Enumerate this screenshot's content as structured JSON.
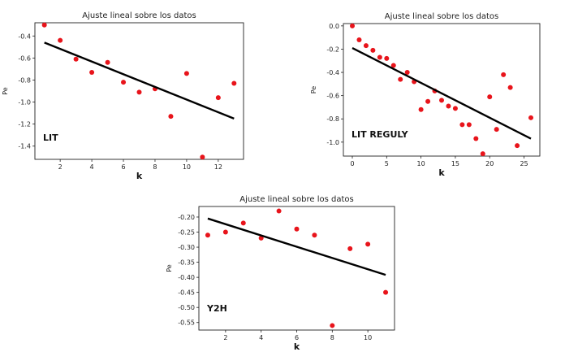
{
  "chart_data": [
    {
      "type": "scatter",
      "title": "Ajuste lineal sobre los datos",
      "xlabel": "k",
      "ylabel": "Pe",
      "panel_label": "LIT",
      "xlim": [
        0.4,
        13.6
      ],
      "ylim": [
        -1.52,
        -0.28
      ],
      "xticks": [
        2,
        4,
        6,
        8,
        10,
        12
      ],
      "xtick_labels": [
        "2",
        "4",
        "6",
        "8",
        "10",
        "12"
      ],
      "yticks": [
        -1.4,
        -1.2,
        -1.0,
        -0.8,
        -0.6,
        -0.4
      ],
      "ytick_labels": [
        "-1.4",
        "-1.2",
        "-1.0",
        "-0.8",
        "-0.6",
        "-0.4"
      ],
      "series": [
        {
          "type": "scatter",
          "color": "#e8141b",
          "x": [
            1,
            2,
            3,
            4,
            5,
            6,
            7,
            8,
            9,
            10,
            11,
            12,
            13
          ],
          "y": [
            -0.3,
            -0.44,
            -0.61,
            -0.73,
            -0.64,
            -0.82,
            -0.91,
            -0.88,
            -1.13,
            -0.74,
            -1.5,
            -0.96,
            -0.83
          ]
        },
        {
          "type": "line",
          "color": "#000000",
          "x": [
            1,
            13
          ],
          "y": [
            -0.46,
            -1.15
          ]
        }
      ]
    },
    {
      "type": "scatter",
      "title": "Ajuste lineal sobre los datos",
      "xlabel": "k",
      "ylabel": "Pe",
      "panel_label": "LIT REGULY",
      "xlim": [
        -1.3,
        27.3
      ],
      "ylim": [
        -1.12,
        0.02
      ],
      "xticks": [
        0,
        5,
        10,
        15,
        20,
        25
      ],
      "xtick_labels": [
        "0",
        "5",
        "10",
        "15",
        "20",
        "25"
      ],
      "yticks": [
        -1.0,
        -0.8,
        -0.6,
        -0.4,
        -0.2,
        0.0
      ],
      "ytick_labels": [
        "-1.0",
        "-0.8",
        "-0.6",
        "-0.4",
        "-0.2",
        "0.0"
      ],
      "series": [
        {
          "type": "scatter",
          "color": "#e8141b",
          "x": [
            0,
            1,
            2,
            3,
            4,
            5,
            6,
            7,
            8,
            9,
            10,
            11,
            12,
            13,
            14,
            15,
            16,
            17,
            18,
            19,
            20,
            21,
            22,
            23,
            24,
            26
          ],
          "y": [
            0.0,
            -0.12,
            -0.17,
            -0.21,
            -0.27,
            -0.28,
            -0.34,
            -0.46,
            -0.4,
            -0.48,
            -0.72,
            -0.65,
            -0.56,
            -0.64,
            -0.69,
            -0.71,
            -0.85,
            -0.85,
            -0.97,
            -1.1,
            -0.61,
            -0.89,
            -0.42,
            -0.53,
            -1.03,
            -0.79
          ]
        },
        {
          "type": "line",
          "color": "#000000",
          "x": [
            0,
            26
          ],
          "y": [
            -0.19,
            -0.97
          ]
        }
      ]
    },
    {
      "type": "scatter",
      "title": "Ajuste lineal sobre los datos",
      "xlabel": "k",
      "ylabel": "Pe",
      "panel_label": "Y2H",
      "xlim": [
        0.5,
        11.5
      ],
      "ylim": [
        -0.575,
        -0.165
      ],
      "xticks": [
        2,
        4,
        6,
        8,
        10
      ],
      "xtick_labels": [
        "2",
        "4",
        "6",
        "8",
        "10"
      ],
      "yticks": [
        -0.55,
        -0.5,
        -0.45,
        -0.4,
        -0.35,
        -0.3,
        -0.25,
        -0.2
      ],
      "ytick_labels": [
        "-0.55",
        "-0.50",
        "-0.45",
        "-0.40",
        "-0.35",
        "-0.30",
        "-0.25",
        "-0.20"
      ],
      "series": [
        {
          "type": "scatter",
          "color": "#e8141b",
          "x": [
            1,
            2,
            3,
            4,
            5,
            6,
            7,
            8,
            9,
            10,
            11
          ],
          "y": [
            -0.26,
            -0.25,
            -0.22,
            -0.27,
            -0.18,
            -0.24,
            -0.26,
            -0.56,
            -0.305,
            -0.29,
            -0.45
          ]
        },
        {
          "type": "line",
          "color": "#000000",
          "x": [
            1,
            11
          ],
          "y": [
            -0.205,
            -0.392
          ]
        }
      ]
    }
  ]
}
